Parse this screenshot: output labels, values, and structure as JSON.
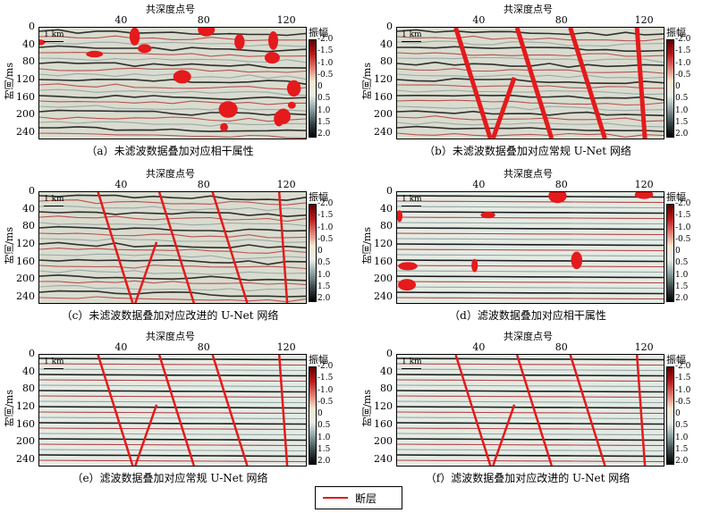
{
  "xlabel": "共深度点号",
  "ylabel": "时间/ms",
  "x_ticks": [
    "40",
    "80",
    "120"
  ],
  "y_ticks": [
    "0",
    "40",
    "80",
    "120",
    "160",
    "200",
    "240"
  ],
  "scale_label": "1 km",
  "colorbar_title": "振幅",
  "colorbar_ticks": [
    "-2.0",
    "-1.5",
    "-1.0",
    "-0.5",
    "0",
    "0.5",
    "1.0",
    "1.5",
    "2.0"
  ],
  "colors": {
    "fault": "#e41a1c"
  },
  "panels": [
    {
      "caption": "（a）未滤波数据叠加对应相干属性",
      "noise": true,
      "result": "coherence"
    },
    {
      "caption": "（b）未滤波数据叠加对应常规 U-Net 网络",
      "noise": true,
      "result": "unet"
    },
    {
      "caption": "（c）未滤波数据叠加对应改进的 U-Net 网络",
      "noise": true,
      "result": "improved"
    },
    {
      "caption": "（d）滤波数据叠加对应相干属性",
      "noise": false,
      "result": "coherence"
    },
    {
      "caption": "（e）滤波数据叠加对应常规 U-Net 网络",
      "noise": false,
      "result": "unet"
    },
    {
      "caption": "（f）滤波数据叠加对应改进的 U-Net 网络",
      "noise": false,
      "result": "improved"
    }
  ],
  "legend": {
    "label": "断层"
  }
}
